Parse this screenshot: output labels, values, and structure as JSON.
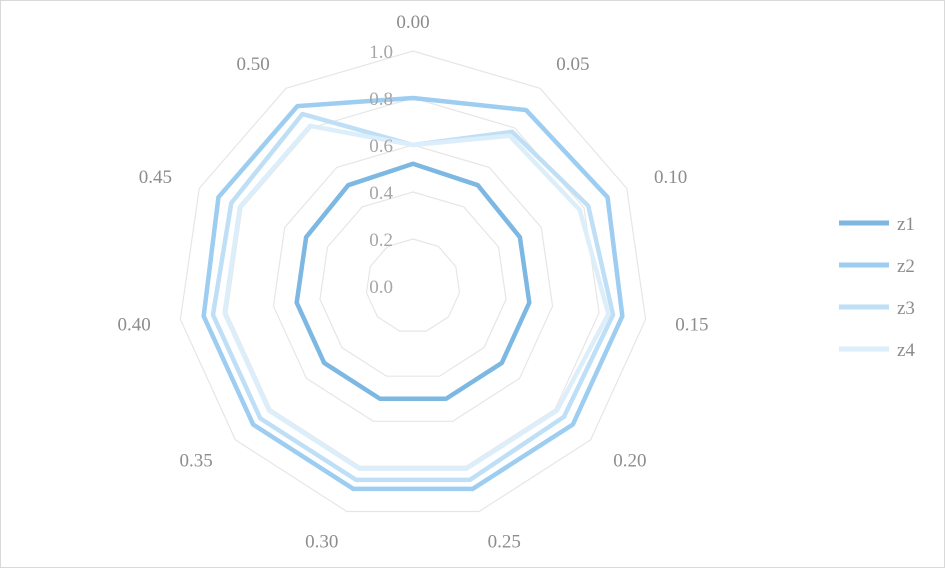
{
  "chart_data": {
    "type": "radar",
    "categories": [
      "0.00",
      "0.05",
      "0.10",
      "0.15",
      "0.20",
      "0.25",
      "0.30",
      "0.35",
      "0.40",
      "0.45",
      "0.50"
    ],
    "radial_ticks": [
      "0.0",
      "0.2",
      "0.4",
      "0.6",
      "0.8",
      "1.0"
    ],
    "ylim": [
      0,
      1.0
    ],
    "grid": true,
    "legend_position": "right",
    "series": [
      {
        "name": "z1",
        "color": "#7db8e3",
        "values": [
          0.52,
          0.51,
          0.5,
          0.5,
          0.5,
          0.5,
          0.5,
          0.5,
          0.5,
          0.5,
          0.51
        ]
      },
      {
        "name": "z2",
        "color": "#9dcdf0",
        "values": [
          0.8,
          0.89,
          0.91,
          0.9,
          0.9,
          0.9,
          0.9,
          0.9,
          0.9,
          0.91,
          0.91
        ]
      },
      {
        "name": "z3",
        "color": "#bfdff6",
        "values": [
          0.6,
          0.78,
          0.82,
          0.86,
          0.85,
          0.86,
          0.86,
          0.86,
          0.86,
          0.85,
          0.87
        ]
      },
      {
        "name": "z4",
        "color": "#dceefa",
        "values": [
          0.6,
          0.76,
          0.78,
          0.84,
          0.81,
          0.81,
          0.81,
          0.81,
          0.81,
          0.81,
          0.81
        ]
      }
    ]
  }
}
